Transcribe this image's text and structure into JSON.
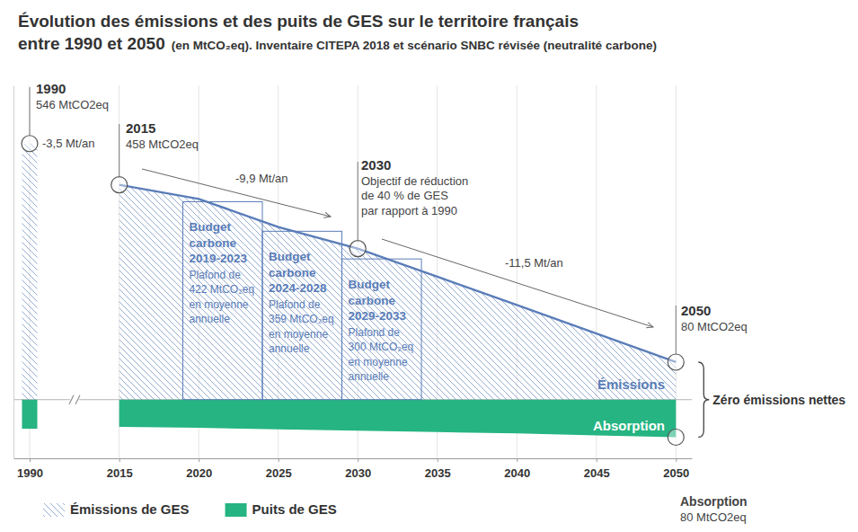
{
  "chart_data": {
    "type": "area",
    "title": [
      "Évolution des émissions et des puits de GES sur le territoire français",
      "entre 1990 et 2050"
    ],
    "subtitle": "(en MtCO₂eq). Inventaire CITEPA 2018 et scénario SNBC révisée (neutralité carbone)",
    "x": [
      1990,
      2015,
      2020,
      2025,
      2030,
      2035,
      2040,
      2045,
      2050
    ],
    "series": [
      {
        "name": "Émissions de GES",
        "type": "line",
        "color": "#5a7db8",
        "values": [
          546,
          458,
          428,
          368,
          322,
          262,
          202,
          141,
          80
        ]
      },
      {
        "name": "Puits de GES",
        "type": "area",
        "color": "#25b482",
        "values": [
          -62,
          -58,
          -60,
          -63,
          -66,
          -69,
          -72,
          -76,
          -80
        ]
      }
    ],
    "xlim": [
      1989,
      2051
    ],
    "xticks": [
      1990,
      2015,
      2020,
      2025,
      2030,
      2035,
      2040,
      2045,
      2050
    ],
    "ylim": [
      -125,
      670
    ],
    "grid": true,
    "tick_labels": "x",
    "legend": "bottom-left",
    "budgets": [
      {
        "title": "Budget carbone",
        "period": "2019-2023",
        "text": [
          "Plafond de",
          "422 MtCO₂eq",
          "en moyenne",
          "annuelle"
        ],
        "value": 422,
        "x_range": [
          2019,
          2024
        ]
      },
      {
        "title": "Budget carbone",
        "period": "2024-2028",
        "text": [
          "Plafond de",
          "359 MtCO₂eq",
          "en moyenne",
          "annuelle"
        ],
        "value": 359,
        "x_range": [
          2024,
          2029
        ]
      },
      {
        "title": "Budget carbone",
        "period": "2029-2033",
        "text": [
          "Plafond de",
          "300 MtCO₂eq",
          "en moyenne",
          "annuelle"
        ],
        "value": 300,
        "x_range": [
          2029,
          2034
        ]
      }
    ],
    "annotations": [
      {
        "text": [
          "1990",
          "546 MtCO2eq"
        ]
      },
      {
        "text": [
          "-3,5 Mt/an"
        ]
      },
      {
        "text": [
          "2015",
          "458 MtCO2eq"
        ]
      },
      {
        "text": [
          "-9,9 Mt/an"
        ]
      },
      {
        "text": [
          "2030",
          "Objectif de réduction",
          "de 40 % de GES",
          "par rapport à 1990"
        ]
      },
      {
        "text": [
          "-11,5 Mt/an"
        ]
      },
      {
        "text": [
          "2050",
          "80 MtCO2eq"
        ]
      },
      {
        "text": [
          "Émissions"
        ]
      },
      {
        "text": [
          "Absorption"
        ]
      },
      {
        "text": [
          "Zéro émissions nettes"
        ]
      },
      {
        "text": [
          "Absorption",
          "80 MtCO2eq"
        ]
      }
    ]
  }
}
